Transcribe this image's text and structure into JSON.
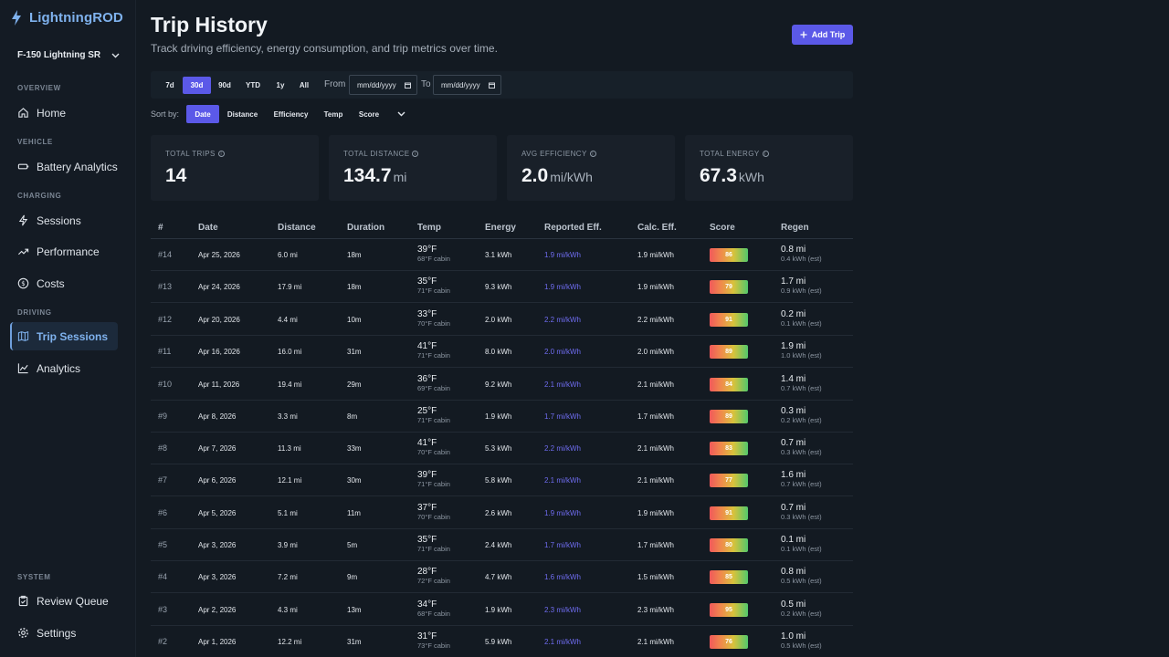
{
  "app": {
    "name": "LightningROD",
    "vehicle": "F-150 Lightning SR"
  },
  "sidebar": {
    "sections": {
      "overview": "OVERVIEW",
      "vehicle": "VEHICLE",
      "charging": "CHARGING",
      "driving": "DRIVING",
      "system": "SYSTEM"
    },
    "items": {
      "home": "Home",
      "battery": "Battery Analytics",
      "sessions": "Sessions",
      "performance": "Performance",
      "costs": "Costs",
      "trips": "Trip Sessions",
      "analytics": "Analytics",
      "review": "Review Queue",
      "settings": "Settings"
    }
  },
  "header": {
    "title": "Trip History",
    "subtitle": "Track driving efficiency, energy consumption, and trip metrics over time.",
    "add_label": "Add Trip"
  },
  "filters": {
    "ranges": [
      "7d",
      "30d",
      "90d",
      "YTD",
      "1y",
      "All"
    ],
    "active_range": "30d",
    "from_label": "From",
    "to_label": "To",
    "from_placeholder": "mm/dd/yyyy",
    "to_placeholder": "mm/dd/yyyy"
  },
  "sort": {
    "label": "Sort by:",
    "options": [
      "Date",
      "Distance",
      "Efficiency",
      "Temp",
      "Score"
    ],
    "active": "Date"
  },
  "stats": [
    {
      "label": "TOTAL TRIPS",
      "value": "14",
      "unit": ""
    },
    {
      "label": "TOTAL DISTANCE",
      "value": "134.7",
      "unit": "mi"
    },
    {
      "label": "AVG EFFICIENCY",
      "value": "2.0",
      "unit": "mi/kWh"
    },
    {
      "label": "TOTAL ENERGY",
      "value": "67.3",
      "unit": "kWh"
    }
  ],
  "table": {
    "columns": [
      "#",
      "Date",
      "Distance",
      "Duration",
      "Temp",
      "Energy",
      "Reported Eff.",
      "Calc. Eff.",
      "Score",
      "Regen"
    ],
    "rows": [
      {
        "id": "#14",
        "date": "Apr 25, 2026",
        "distance": "6.0 mi",
        "duration": "18m",
        "temp": "39°F",
        "cabin": "68°F cabin",
        "energy": "3.1 kWh",
        "reported": "1.9 mi/kWh",
        "calc": "1.9 mi/kWh",
        "score": "86",
        "regen": "0.8 mi",
        "regen_kwh": "0.4 kWh (est)"
      },
      {
        "id": "#13",
        "date": "Apr 24, 2026",
        "distance": "17.9 mi",
        "duration": "18m",
        "temp": "35°F",
        "cabin": "71°F cabin",
        "energy": "9.3 kWh",
        "reported": "1.9 mi/kWh",
        "calc": "1.9 mi/kWh",
        "score": "79",
        "regen": "1.7 mi",
        "regen_kwh": "0.9 kWh (est)"
      },
      {
        "id": "#12",
        "date": "Apr 20, 2026",
        "distance": "4.4 mi",
        "duration": "10m",
        "temp": "33°F",
        "cabin": "70°F cabin",
        "energy": "2.0 kWh",
        "reported": "2.2 mi/kWh",
        "calc": "2.2 mi/kWh",
        "score": "91",
        "regen": "0.2 mi",
        "regen_kwh": "0.1 kWh (est)"
      },
      {
        "id": "#11",
        "date": "Apr 16, 2026",
        "distance": "16.0 mi",
        "duration": "31m",
        "temp": "41°F",
        "cabin": "71°F cabin",
        "energy": "8.0 kWh",
        "reported": "2.0 mi/kWh",
        "calc": "2.0 mi/kWh",
        "score": "89",
        "regen": "1.9 mi",
        "regen_kwh": "1.0 kWh (est)"
      },
      {
        "id": "#10",
        "date": "Apr 11, 2026",
        "distance": "19.4 mi",
        "duration": "29m",
        "temp": "36°F",
        "cabin": "69°F cabin",
        "energy": "9.2 kWh",
        "reported": "2.1 mi/kWh",
        "calc": "2.1 mi/kWh",
        "score": "84",
        "regen": "1.4 mi",
        "regen_kwh": "0.7 kWh (est)"
      },
      {
        "id": "#9",
        "date": "Apr 8, 2026",
        "distance": "3.3 mi",
        "duration": "8m",
        "temp": "25°F",
        "cabin": "71°F cabin",
        "energy": "1.9 kWh",
        "reported": "1.7 mi/kWh",
        "calc": "1.7 mi/kWh",
        "score": "89",
        "regen": "0.3 mi",
        "regen_kwh": "0.2 kWh (est)"
      },
      {
        "id": "#8",
        "date": "Apr 7, 2026",
        "distance": "11.3 mi",
        "duration": "33m",
        "temp": "41°F",
        "cabin": "70°F cabin",
        "energy": "5.3 kWh",
        "reported": "2.2 mi/kWh",
        "calc": "2.1 mi/kWh",
        "score": "83",
        "regen": "0.7 mi",
        "regen_kwh": "0.3 kWh (est)"
      },
      {
        "id": "#7",
        "date": "Apr 6, 2026",
        "distance": "12.1 mi",
        "duration": "30m",
        "temp": "39°F",
        "cabin": "71°F cabin",
        "energy": "5.8 kWh",
        "reported": "2.1 mi/kWh",
        "calc": "2.1 mi/kWh",
        "score": "77",
        "regen": "1.6 mi",
        "regen_kwh": "0.7 kWh (est)"
      },
      {
        "id": "#6",
        "date": "Apr 5, 2026",
        "distance": "5.1 mi",
        "duration": "11m",
        "temp": "37°F",
        "cabin": "70°F cabin",
        "energy": "2.6 kWh",
        "reported": "1.9 mi/kWh",
        "calc": "1.9 mi/kWh",
        "score": "91",
        "regen": "0.7 mi",
        "regen_kwh": "0.3 kWh (est)"
      },
      {
        "id": "#5",
        "date": "Apr 3, 2026",
        "distance": "3.9 mi",
        "duration": "5m",
        "temp": "35°F",
        "cabin": "71°F cabin",
        "energy": "2.4 kWh",
        "reported": "1.7 mi/kWh",
        "calc": "1.7 mi/kWh",
        "score": "80",
        "regen": "0.1 mi",
        "regen_kwh": "0.1 kWh (est)"
      },
      {
        "id": "#4",
        "date": "Apr 3, 2026",
        "distance": "7.2 mi",
        "duration": "9m",
        "temp": "28°F",
        "cabin": "72°F cabin",
        "energy": "4.7 kWh",
        "reported": "1.6 mi/kWh",
        "calc": "1.5 mi/kWh",
        "score": "85",
        "regen": "0.8 mi",
        "regen_kwh": "0.5 kWh (est)"
      },
      {
        "id": "#3",
        "date": "Apr 2, 2026",
        "distance": "4.3 mi",
        "duration": "13m",
        "temp": "34°F",
        "cabin": "68°F cabin",
        "energy": "1.9 kWh",
        "reported": "2.3 mi/kWh",
        "calc": "2.3 mi/kWh",
        "score": "95",
        "regen": "0.5 mi",
        "regen_kwh": "0.2 kWh (est)"
      },
      {
        "id": "#2",
        "date": "Apr 1, 2026",
        "distance": "12.2 mi",
        "duration": "31m",
        "temp": "31°F",
        "cabin": "73°F cabin",
        "energy": "5.9 kWh",
        "reported": "2.1 mi/kWh",
        "calc": "2.1 mi/kWh",
        "score": "76",
        "regen": "1.0 mi",
        "regen_kwh": "0.5 kWh (est)"
      }
    ]
  }
}
